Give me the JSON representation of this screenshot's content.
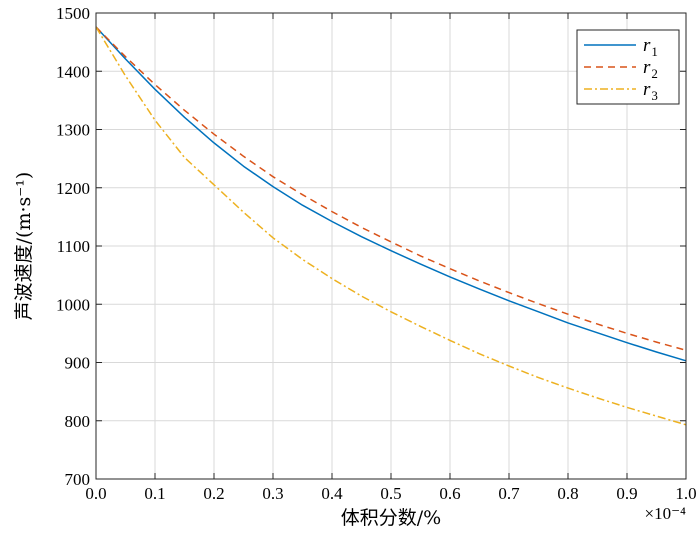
{
  "chart_data": {
    "type": "line",
    "title": "",
    "xlabel": "体积分数/%",
    "ylabel": "声波速度/(m·s⁻¹)",
    "x_multiplier_label": "×10⁻⁴",
    "xlim": [
      0,
      1.0
    ],
    "ylim": [
      700,
      1500
    ],
    "xticks": [
      0.0,
      0.1,
      0.2,
      0.3,
      0.4,
      0.5,
      0.6,
      0.7,
      0.8,
      0.9,
      1.0
    ],
    "xtick_labels": [
      "0.0",
      "0.1",
      "0.2",
      "0.3",
      "0.4",
      "0.5",
      "0.6",
      "0.7",
      "0.8",
      "0.9",
      "1.0"
    ],
    "yticks": [
      700,
      800,
      900,
      1000,
      1100,
      1200,
      1300,
      1400,
      1500
    ],
    "ytick_labels": [
      "700",
      "800",
      "900",
      "1000",
      "1100",
      "1200",
      "1300",
      "1400",
      "1500"
    ],
    "grid": true,
    "legend_position": "top-right",
    "x": [
      0.0,
      0.05,
      0.1,
      0.15,
      0.2,
      0.25,
      0.3,
      0.35,
      0.4,
      0.45,
      0.5,
      0.55,
      0.6,
      0.65,
      0.7,
      0.75,
      0.8,
      0.85,
      0.9,
      0.95,
      1.0
    ],
    "series": [
      {
        "name": "r",
        "name_sub": "1",
        "color": "#0072BD",
        "dash": "solid",
        "values": [
          1476,
          1421,
          1369,
          1321,
          1277,
          1237,
          1202,
          1170,
          1142,
          1116,
          1092,
          1069,
          1047,
          1026,
          1006,
          987,
          968,
          951,
          934,
          918,
          903
        ]
      },
      {
        "name": "r",
        "name_sub": "2",
        "color": "#D95319",
        "dash": "dashed",
        "values": [
          1476,
          1425,
          1377,
          1333,
          1292,
          1254,
          1219,
          1188,
          1159,
          1132,
          1107,
          1083,
          1061,
          1040,
          1020,
          1001,
          983,
          966,
          950,
          935,
          921
        ]
      },
      {
        "name": "r",
        "name_sub": "3",
        "color": "#EDB120",
        "dash": "dashdot",
        "values": [
          1476,
          1392,
          1316,
          1252,
          1205,
          1158,
          1114,
          1077,
          1044,
          1014,
          987,
          962,
          938,
          915,
          894,
          874,
          856,
          839,
          823,
          808,
          793
        ]
      }
    ]
  }
}
